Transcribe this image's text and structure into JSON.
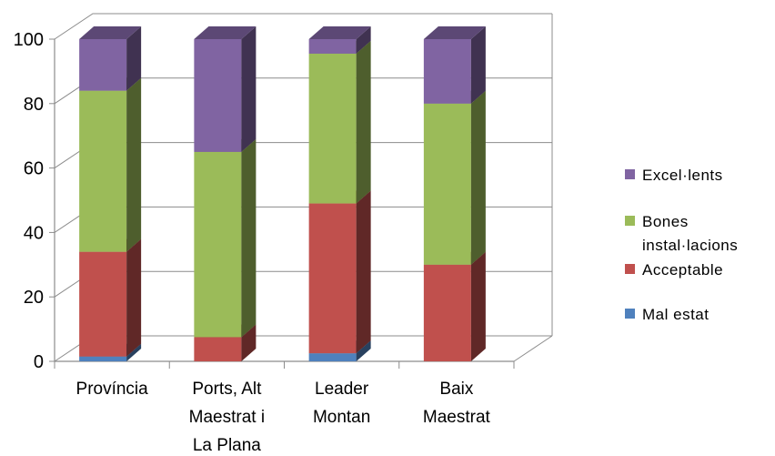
{
  "chart_data": {
    "type": "bar",
    "stacked": true,
    "three_d": true,
    "categories": [
      [
        "Província"
      ],
      [
        "Ports, Alt",
        "Maestrat i",
        "La Plana"
      ],
      [
        "Leader",
        "Montan"
      ],
      [
        "Baix",
        "Maestrat"
      ]
    ],
    "series": [
      {
        "name": "Mal estat",
        "color": "#4F81BD",
        "values": [
          1.5,
          0,
          2.5,
          0
        ]
      },
      {
        "name": "Acceptable",
        "color": "#C0504D",
        "values": [
          32.5,
          7.5,
          46.5,
          30
        ]
      },
      {
        "name": "Bones instal·lacions",
        "color": "#9BBB59",
        "values": [
          50,
          57.5,
          46.5,
          50
        ]
      },
      {
        "name": "Excel·lents",
        "color": "#8064A2",
        "values": [
          16,
          35,
          4.5,
          20
        ]
      }
    ],
    "yticks": [
      0,
      20,
      40,
      60,
      80,
      100
    ],
    "ylim": [
      0,
      100
    ],
    "grid": true,
    "legend": {
      "position": "right",
      "order": [
        "Excel·lents",
        "Bones instal·lacions",
        "Acceptable",
        "Mal estat"
      ],
      "display_lines": [
        [
          "Excel·lents"
        ],
        [
          "Bones",
          "instal·lacions"
        ],
        [
          "Acceptable"
        ],
        [
          "Mal estat"
        ]
      ]
    }
  }
}
